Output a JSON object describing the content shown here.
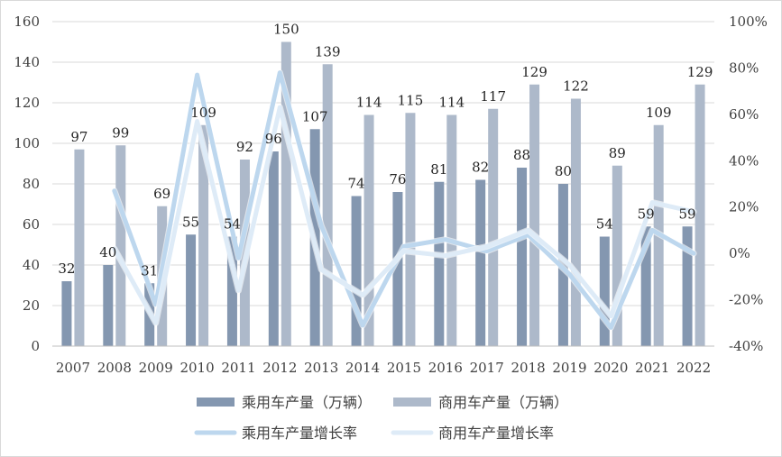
{
  "chart_data": {
    "type": "bar",
    "categories": [
      "2007",
      "2008",
      "2009",
      "2010",
      "2011",
      "2012",
      "2013",
      "2014",
      "2015",
      "2016",
      "2017",
      "2018",
      "2019",
      "2020",
      "2021",
      "2022"
    ],
    "series": [
      {
        "name": "乘用车产量（万辆）",
        "kind": "bar",
        "axis": "left",
        "color": "#8497B0",
        "values": [
          32,
          40,
          31,
          55,
          54,
          96,
          107,
          74,
          76,
          81,
          82,
          88,
          80,
          54,
          59,
          59
        ]
      },
      {
        "name": "商用车产量（万辆）",
        "kind": "bar",
        "axis": "left",
        "color": "#ADB9CA",
        "values": [
          97,
          99,
          69,
          109,
          92,
          150,
          139,
          114,
          115,
          114,
          117,
          129,
          122,
          89,
          109,
          129
        ]
      },
      {
        "name": "乘用车产量增长率",
        "kind": "line",
        "axis": "right",
        "color": "#BDD7EE",
        "values": [
          null,
          27,
          -22,
          77,
          -2,
          78,
          12,
          -31,
          3,
          6,
          1,
          8,
          -9,
          -32,
          10,
          0
        ]
      },
      {
        "name": "商用车产量增长率",
        "kind": "line",
        "axis": "right",
        "color": "#DEEBF7",
        "values": [
          null,
          2,
          -30,
          57,
          -16,
          63,
          -7,
          -18,
          1,
          -1,
          3,
          10,
          -5,
          -27,
          22,
          18
        ]
      }
    ],
    "yaxis_left": {
      "min": 0,
      "max": 160,
      "ticks": [
        "0",
        "20",
        "40",
        "60",
        "80",
        "100",
        "120",
        "140",
        "160"
      ]
    },
    "yaxis_right": {
      "min": -40,
      "max": 100,
      "ticks": [
        "-40%",
        "-20%",
        "0%",
        "20%",
        "40%",
        "60%",
        "80%",
        "100%"
      ]
    },
    "gridlines": true,
    "legend_position": "bottom",
    "title": "",
    "xlabel": "",
    "ylabel": ""
  }
}
